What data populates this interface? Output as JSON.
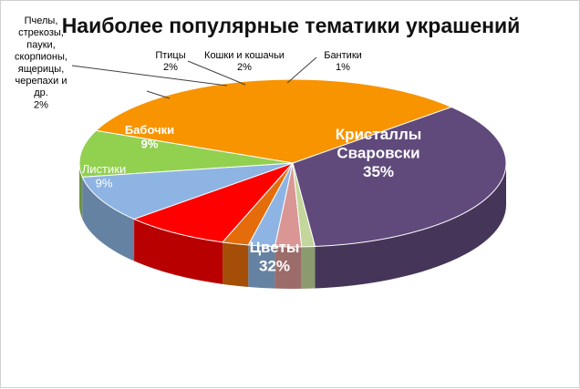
{
  "chart_data": {
    "type": "pie",
    "title": "Наиболее популярные тематики украшений",
    "slices": [
      {
        "name": "Кристаллы Сваровски",
        "value": 35,
        "label": "35%",
        "color": "#604a7b"
      },
      {
        "name": "Цветы",
        "value": 32,
        "label": "32%",
        "color": "#f79400"
      },
      {
        "name": "Листики",
        "value": 9,
        "label": "9%",
        "color": "#92d050"
      },
      {
        "name": "Бабочки",
        "value": 9,
        "label": "9%",
        "color": "#8eb4e3"
      },
      {
        "name": "",
        "value": 8,
        "label": "",
        "color": "#ff0000"
      },
      {
        "name": "Пчелы, стрекозы, пауки, скорпионы, ящерицы, черепахи и др.",
        "value": 2,
        "label": "2%",
        "color": "#e46c0a"
      },
      {
        "name": "Птицы",
        "value": 2,
        "label": "2%",
        "color": "#8eb4e3"
      },
      {
        "name": "Кошки и кошачьи",
        "value": 2,
        "label": "2%",
        "color": "#d99694"
      },
      {
        "name": "Бантики",
        "value": 1,
        "label": "1%",
        "color": "#c3d69b"
      }
    ],
    "legend": "none"
  }
}
